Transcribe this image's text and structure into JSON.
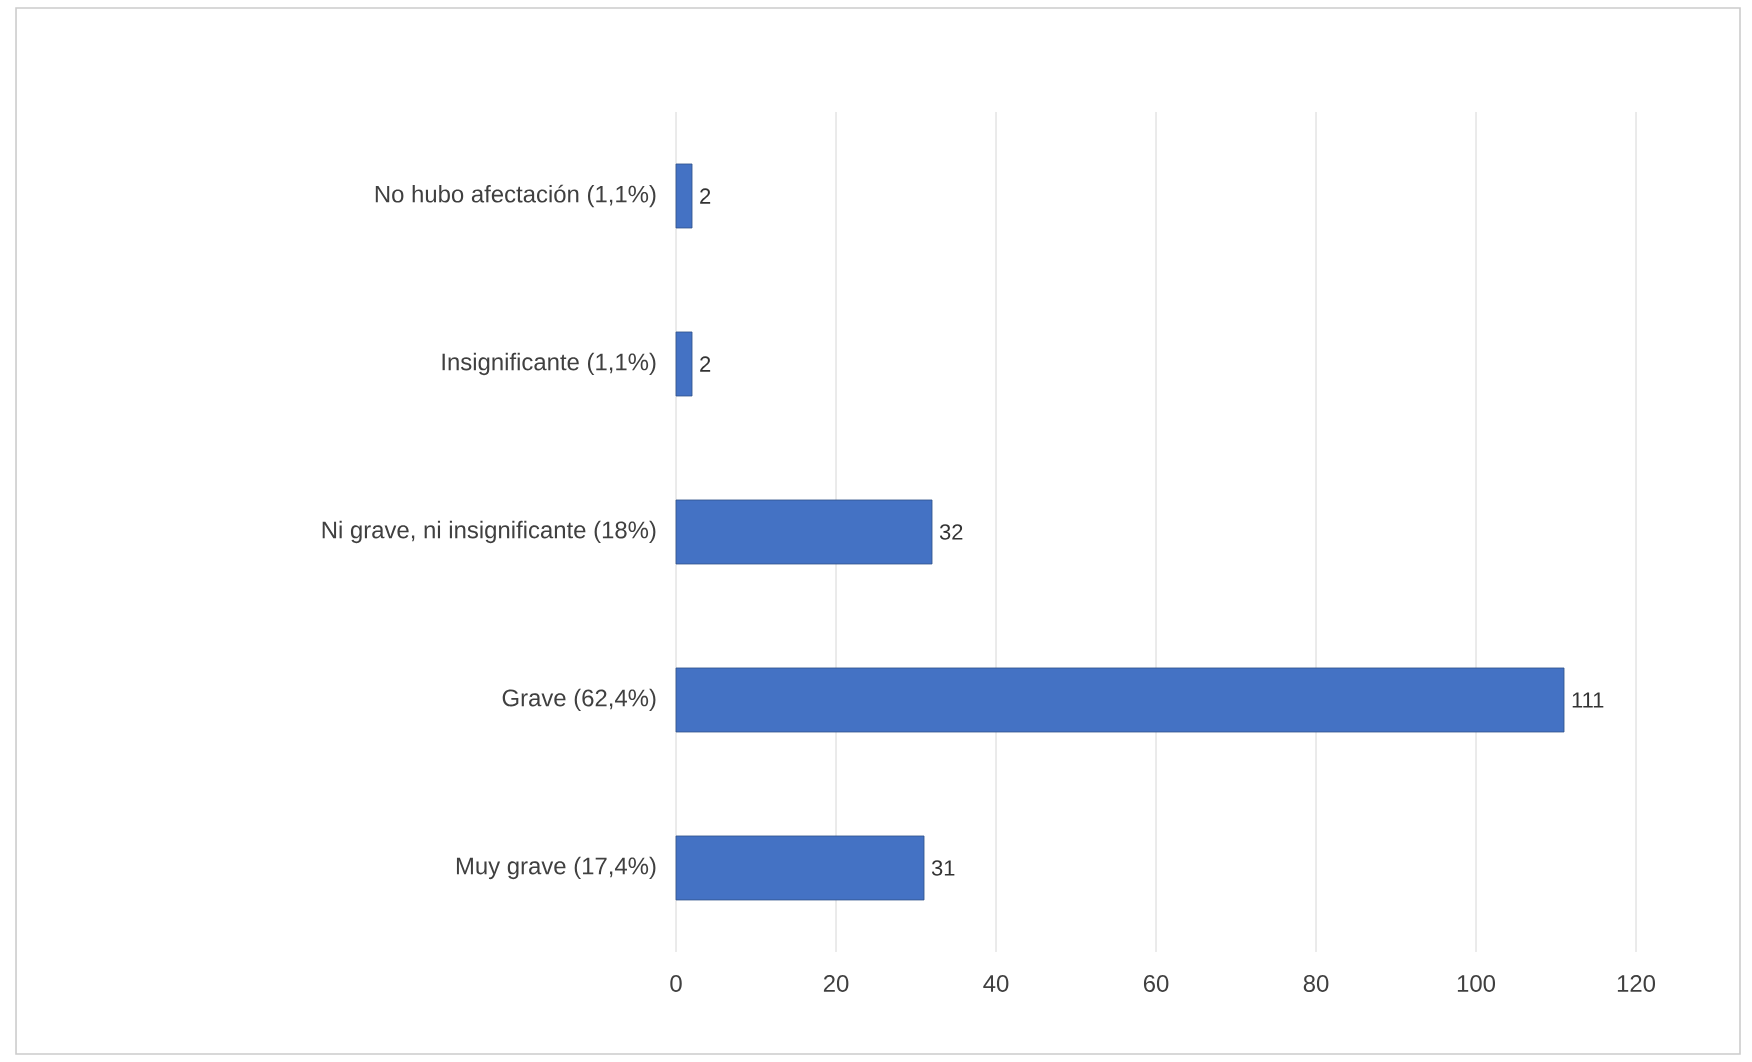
{
  "chart_data": {
    "type": "bar",
    "orientation": "horizontal",
    "categories": [
      "No hubo afectación (1,1%)",
      "Insignificante (1,1%)",
      "Ni grave, ni insignificante (18%)",
      "Grave (62,4%)",
      "Muy grave (17,4%)"
    ],
    "values": [
      2,
      2,
      32,
      111,
      31
    ],
    "color": "#4472c4",
    "xlim": [
      0,
      120
    ],
    "xticks": [
      0,
      20,
      40,
      60,
      80,
      100,
      120
    ],
    "grid": "x",
    "data_labels": true
  }
}
